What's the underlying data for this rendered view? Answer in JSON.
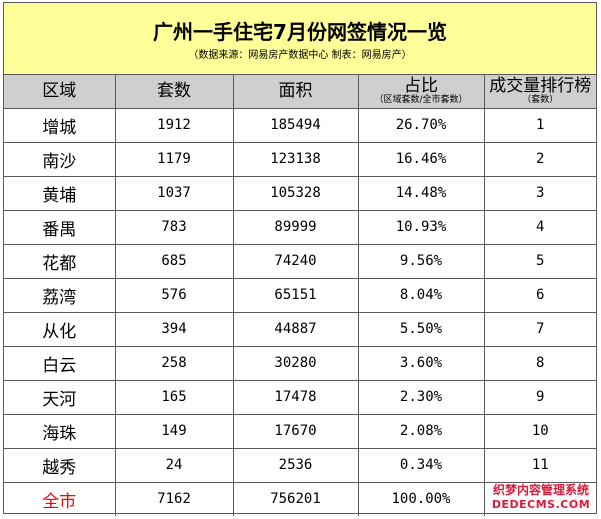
{
  "title": "广州一手住宅7月份网签情况一览",
  "subtitle": "（数据来源：网易房产数据中心  制表：网易房产）",
  "headers": {
    "region": "区域",
    "units": "套数",
    "area": "面积",
    "share": "占比",
    "share_note": "（区域套数/全市套数）",
    "rank": "成交量排行榜",
    "rank_note": "（套数）"
  },
  "rows": [
    {
      "region": "增城",
      "units": "1912",
      "area": "185494",
      "share": "26.70%",
      "rank": "1"
    },
    {
      "region": "南沙",
      "units": "1179",
      "area": "123138",
      "share": "16.46%",
      "rank": "2"
    },
    {
      "region": "黄埔",
      "units": "1037",
      "area": "105328",
      "share": "14.48%",
      "rank": "3"
    },
    {
      "region": "番禺",
      "units": "783",
      "area": "89999",
      "share": "10.93%",
      "rank": "4"
    },
    {
      "region": "花都",
      "units": "685",
      "area": "74240",
      "share": "9.56%",
      "rank": "5"
    },
    {
      "region": "荔湾",
      "units": "576",
      "area": "65151",
      "share": "8.04%",
      "rank": "6"
    },
    {
      "region": "从化",
      "units": "394",
      "area": "44887",
      "share": "5.50%",
      "rank": "7"
    },
    {
      "region": "白云",
      "units": "258",
      "area": "30280",
      "share": "3.60%",
      "rank": "8"
    },
    {
      "region": "天河",
      "units": "165",
      "area": "17478",
      "share": "2.30%",
      "rank": "9"
    },
    {
      "region": "海珠",
      "units": "149",
      "area": "17670",
      "share": "2.08%",
      "rank": "10"
    },
    {
      "region": "越秀",
      "units": "24",
      "area": "2536",
      "share": "0.34%",
      "rank": "11"
    }
  ],
  "total": {
    "region": "全市",
    "units": "7162",
    "area": "756201",
    "share": "100.00%"
  },
  "watermark": {
    "line1": "织梦内容管理系统",
    "line2": "DEDECMS.COM"
  },
  "colors": {
    "title_bg": "#ffff99",
    "header_bg": "#d0cece",
    "total_label": "#ff0000",
    "watermark": "#e0193a"
  }
}
